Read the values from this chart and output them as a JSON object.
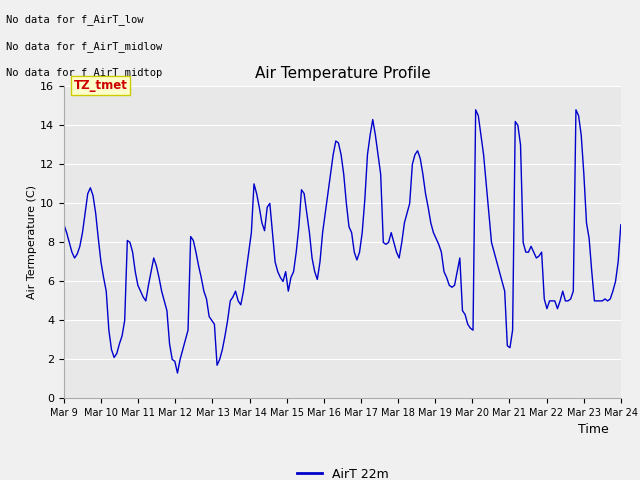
{
  "title": "Air Temperature Profile",
  "xlabel": "Time",
  "ylabel": "Air Termperature (C)",
  "ylim": [
    0,
    16
  ],
  "yticks": [
    0,
    2,
    4,
    6,
    8,
    10,
    12,
    14,
    16
  ],
  "line_color": "#0000cc",
  "bg_color": "#e8e8e8",
  "annotations_top_left": [
    "No data for f_AirT_low",
    "No data for f_AirT_midlow",
    "No data for f_AirT_midtop"
  ],
  "tz_label": "TZ_tmet",
  "legend_label": "AirT 22m",
  "x_tick_labels": [
    "Mar 9",
    "Mar 10",
    "Mar 11",
    "Mar 12",
    "Mar 13",
    "Mar 14",
    "Mar 15",
    "Mar 16",
    "Mar 17",
    "Mar 18",
    "Mar 19",
    "Mar 20",
    "Mar 21",
    "Mar 22",
    "Mar 23",
    "Mar 24"
  ],
  "temperature": [
    8.9,
    8.5,
    8.0,
    7.5,
    7.2,
    7.4,
    7.8,
    8.5,
    9.5,
    10.5,
    10.8,
    10.4,
    9.5,
    8.2,
    7.0,
    6.2,
    5.5,
    3.5,
    2.5,
    2.1,
    2.3,
    2.8,
    3.2,
    4.0,
    8.1,
    8.0,
    7.5,
    6.5,
    5.8,
    5.5,
    5.2,
    5.0,
    5.8,
    6.5,
    7.2,
    6.8,
    6.2,
    5.5,
    5.0,
    4.5,
    2.8,
    2.0,
    1.9,
    1.3,
    2.0,
    2.5,
    3.0,
    3.5,
    8.3,
    8.1,
    7.5,
    6.8,
    6.2,
    5.5,
    5.1,
    4.2,
    4.0,
    3.8,
    1.7,
    2.0,
    2.5,
    3.2,
    4.0,
    5.0,
    5.2,
    5.5,
    5.0,
    4.8,
    5.5,
    6.5,
    7.5,
    8.5,
    11.0,
    10.5,
    9.8,
    9.0,
    8.6,
    9.8,
    10.0,
    8.5,
    7.0,
    6.5,
    6.2,
    6.0,
    6.5,
    5.5,
    6.2,
    6.5,
    7.5,
    8.8,
    10.7,
    10.5,
    9.5,
    8.5,
    7.2,
    6.5,
    6.1,
    7.0,
    8.5,
    9.5,
    10.5,
    11.5,
    12.5,
    13.2,
    13.1,
    12.5,
    11.5,
    10.0,
    8.8,
    8.5,
    7.5,
    7.1,
    7.5,
    8.5,
    10.2,
    12.5,
    13.5,
    14.3,
    13.5,
    12.5,
    11.5,
    8.0,
    7.9,
    8.0,
    8.5,
    8.0,
    7.5,
    7.2,
    8.0,
    9.0,
    9.5,
    10.0,
    12.0,
    12.5,
    12.7,
    12.3,
    11.5,
    10.5,
    9.8,
    9.0,
    8.5,
    8.2,
    7.9,
    7.5,
    6.5,
    6.2,
    5.8,
    5.7,
    5.8,
    6.5,
    7.2,
    4.5,
    4.3,
    3.8,
    3.6,
    3.5,
    14.8,
    14.5,
    13.5,
    12.5,
    11.0,
    9.5,
    8.0,
    7.5,
    7.0,
    6.5,
    6.0,
    5.5,
    2.7,
    2.6,
    3.5,
    14.2,
    14.0,
    13.0,
    8.0,
    7.5,
    7.5,
    7.8,
    7.5,
    7.2,
    7.3,
    7.5,
    5.1,
    4.6,
    5.0,
    5.0,
    5.0,
    4.6,
    5.0,
    5.5,
    5.0,
    5.0,
    5.1,
    5.5,
    14.8,
    14.5,
    13.5,
    11.5,
    9.0,
    8.2,
    6.5,
    5.0,
    5.0,
    5.0,
    5.0,
    5.1,
    5.0,
    5.1,
    5.5,
    6.0,
    7.0,
    8.9
  ]
}
